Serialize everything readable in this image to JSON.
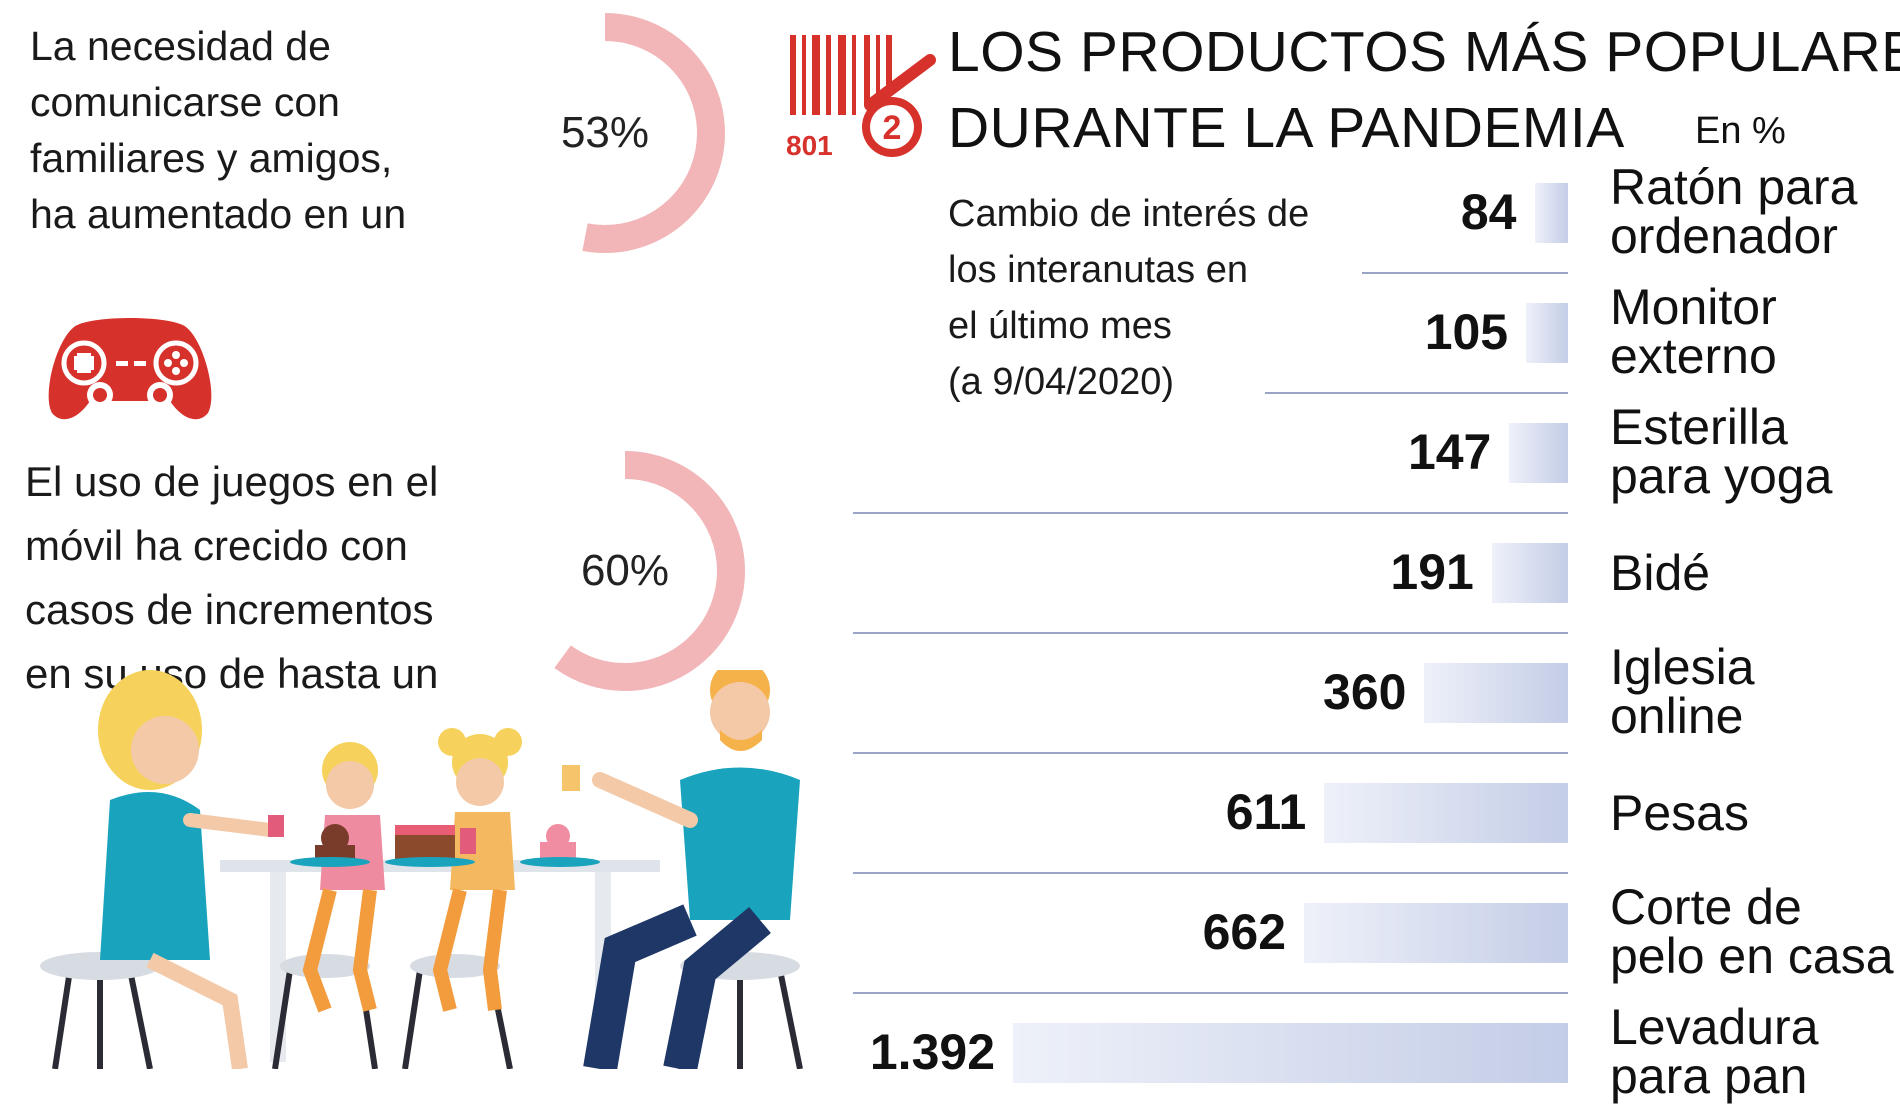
{
  "stat1": {
    "lines": [
      "La necesidad de",
      "comunicarse con",
      "familiares y amigos,",
      "ha aumentado en un"
    ],
    "value": 53,
    "label": "53%"
  },
  "stat2": {
    "lines": [
      "El uso de juegos en el",
      "móvil ha crecido con",
      "casos de incrementos",
      "en su uso de hasta un"
    ],
    "value": 60,
    "label": "60%"
  },
  "logo": {
    "text": "801",
    "badge": "2"
  },
  "colors": {
    "ring": "#f2b6b8",
    "logo_red": "#d7312b",
    "bar_start": "#eef1f9",
    "bar_end": "#c4cde7",
    "separator": "#9aa4c4"
  },
  "icons": {
    "gamepad": "gamepad-icon",
    "family": "family-table-illustration",
    "logo": "barcode-logo-icon"
  },
  "chart_data": {
    "type": "bar",
    "orientation": "horizontal",
    "title_lines": [
      "LOS PRODUCTOS MÁS POPULARES",
      "DURANTE LA PANDEMIA"
    ],
    "unit": "En %",
    "subtitle_lines": [
      "Cambio de interés de",
      "los interanutas en",
      "el último mes",
      "(a 9/04/2020)"
    ],
    "categories": [
      [
        "Ratón para",
        "ordenador"
      ],
      [
        "Monitor",
        "externo"
      ],
      [
        "Esterilla",
        "para yoga"
      ],
      [
        "Bidé"
      ],
      [
        "Iglesia",
        "online"
      ],
      [
        "Pesas"
      ],
      [
        "Corte de",
        "pelo en casa"
      ],
      [
        "Levadura",
        "para pan"
      ]
    ],
    "values": [
      84,
      105,
      147,
      191,
      360,
      611,
      662,
      1392
    ],
    "value_labels": [
      "84",
      "105",
      "147",
      "191",
      "360",
      "611",
      "662",
      "1.392"
    ]
  }
}
